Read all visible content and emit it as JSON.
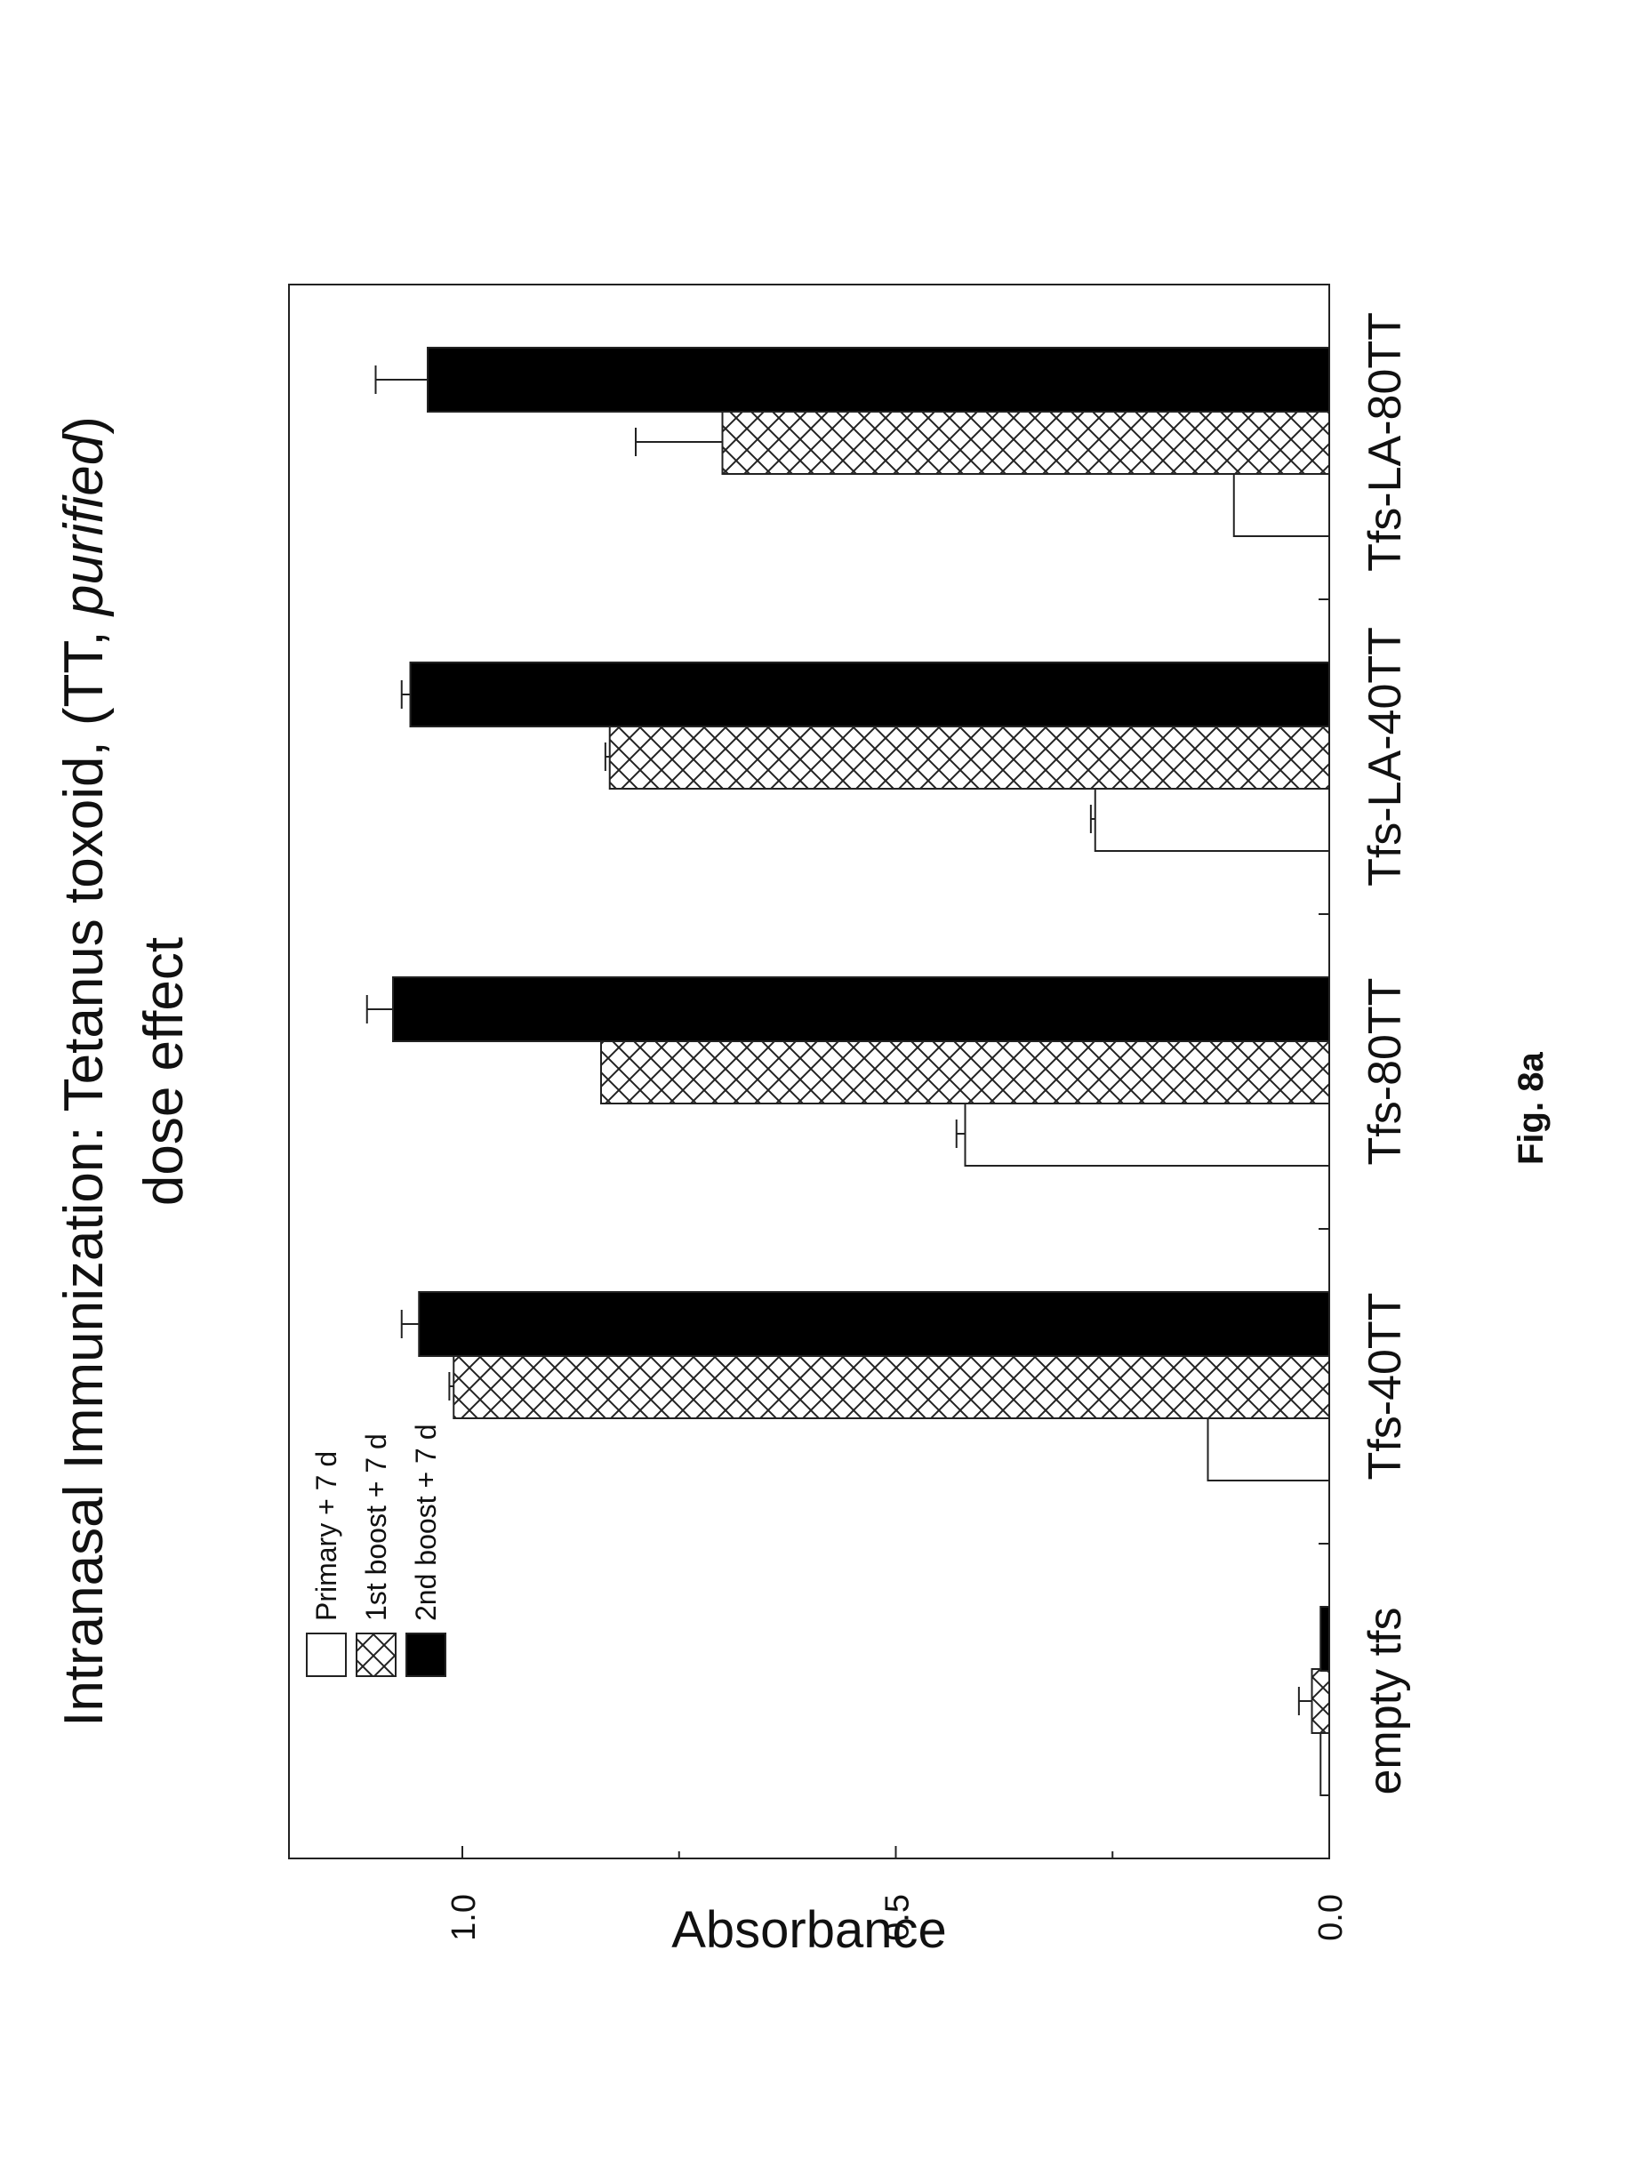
{
  "figure_label": "Fig. 8a",
  "chart_data": {
    "type": "bar",
    "orientation": "vertical, rotated -90° on page",
    "title": "Intranasal Immunization: Tetanus toxoid, (TT, purified)",
    "title_plain": "Intranasal Immunization: Tetanus toxoid, (TT, ",
    "title_italic": "purified",
    "title_close": ")",
    "subtitle": "dose effect",
    "ylabel": "Absorbance",
    "xlabel": "",
    "ylim": [
      0,
      1.2
    ],
    "yticks": [
      {
        "value": 0.0,
        "label": "0.0"
      },
      {
        "value": 0.5,
        "label": "0.5"
      },
      {
        "value": 1.0,
        "label": "1.0"
      }
    ],
    "yticks_minor": [
      0.25,
      0.75
    ],
    "categories": [
      "empty tfs",
      "Tfs-40TT",
      "Tfs-80TT",
      "Tfs-LA-40TT",
      "Tfs-LA-80TT"
    ],
    "series": [
      {
        "name": "Primary + 7 d",
        "fill": "none",
        "color": "#ffffff",
        "values": [
          0.01,
          0.14,
          0.42,
          0.27,
          0.11
        ],
        "errors": [
          0.0,
          0.0,
          0.01,
          0.005,
          0.0
        ]
      },
      {
        "name": "1st boost + 7 d",
        "fill": "crosshatch",
        "color": "#ffffff",
        "values": [
          0.02,
          1.01,
          0.84,
          0.83,
          0.7
        ],
        "errors": [
          0.015,
          0.005,
          0.0,
          0.005,
          0.1
        ]
      },
      {
        "name": "2nd boost + 7 d",
        "fill": "solid",
        "color": "#000000",
        "values": [
          0.01,
          1.05,
          1.08,
          1.06,
          1.04
        ],
        "errors": [
          0.0,
          0.02,
          0.03,
          0.01,
          0.06
        ]
      }
    ],
    "legend_position": "top-left",
    "grid": false
  }
}
